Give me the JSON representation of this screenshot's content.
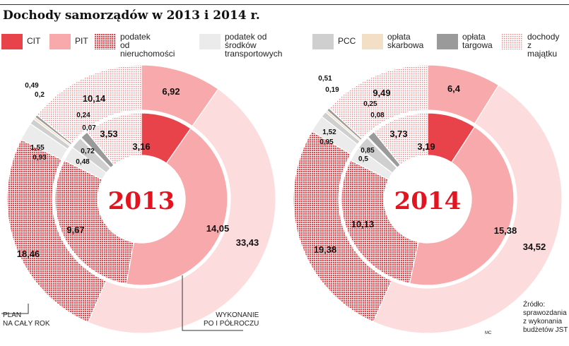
{
  "title": "Dochody samorządów w 2013 i 2014 r.",
  "legend": [
    {
      "label": "CIT",
      "pattern": "cit"
    },
    {
      "label": "PIT",
      "pattern": "pit"
    },
    {
      "label": "podatek\nod nieruchomości",
      "pattern": "nier"
    },
    {
      "label": "podatek od środków\ntransportowych",
      "pattern": "trans"
    },
    {
      "label": "PCC",
      "pattern": "pcc"
    },
    {
      "label": "opłata\nskarbowa",
      "pattern": "skarb"
    },
    {
      "label": "opłata\ntargowa",
      "pattern": "targ"
    },
    {
      "label": "dochody\nz majątku",
      "pattern": "maj"
    }
  ],
  "colors": {
    "cit": "#e8434b",
    "pit": "#f7a9ab",
    "nier": "#e0474e",
    "trans": "#ebebeb",
    "pcc": "#cfcfcf",
    "skarb": "#f2dfc5",
    "targ": "#9a9a9a",
    "maj": "#f3b5b7",
    "outer_light": "#fcdcdc",
    "year": "#e3141f"
  },
  "annotations": {
    "plan": "PLAN\nNA CAŁY ROK",
    "wykonanie": "WYKONANIE\nPO I PÓŁROCZU",
    "source": "Źródło:\nsprawozdania\nz wykonania\nbudżetów JST",
    "author": "MC"
  },
  "chart_data": [
    {
      "type": "pie",
      "label": "2013",
      "categories": [
        "CIT",
        "PIT",
        "podatek od nieruchomości",
        "podatek od środków transportowych",
        "PCC",
        "opłata skarbowa",
        "opłata targowa",
        "dochody z majątku"
      ],
      "series": [
        {
          "name": "PLAN NA CAŁY ROK",
          "values": [
            6.92,
            33.43,
            18.46,
            1.55,
            0.49,
            0.2,
            0.24,
            10.14
          ],
          "labels": [
            "6,92",
            "33,43",
            "18,46",
            "1,55",
            "0,49",
            "0,2",
            "0,24",
            "10,14"
          ]
        },
        {
          "name": "WYKONANIE PO I PÓŁROCZU",
          "values": [
            3.16,
            14.05,
            9.67,
            0.93,
            0.72,
            0.07,
            0.48,
            3.53
          ],
          "labels": [
            "3,16",
            "14,05",
            "9,67",
            "0,93",
            "0,72",
            "0,07",
            "0,48",
            "3,53"
          ]
        }
      ]
    },
    {
      "type": "pie",
      "label": "2014",
      "categories": [
        "CIT",
        "PIT",
        "podatek od nieruchomości",
        "podatek od środków transportowych",
        "PCC",
        "opłata skarbowa",
        "opłata targowa",
        "dochody z majątku"
      ],
      "series": [
        {
          "name": "PLAN NA CAŁY ROK",
          "values": [
            6.4,
            34.52,
            19.38,
            1.52,
            0.51,
            0.19,
            0.25,
            9.49
          ],
          "labels": [
            "6,4",
            "34,52",
            "19,38",
            "1,52",
            "0,51",
            "0,19",
            "0,25",
            "9,49"
          ]
        },
        {
          "name": "WYKONANIE PO I PÓŁROCZU",
          "values": [
            3.19,
            15.38,
            10.13,
            0.95,
            0.85,
            0.08,
            0.5,
            3.73
          ],
          "labels": [
            "3,19",
            "15,38",
            "10,13",
            "0,95",
            "0,85",
            "0,08",
            "0,5",
            "3,73"
          ]
        }
      ]
    }
  ]
}
